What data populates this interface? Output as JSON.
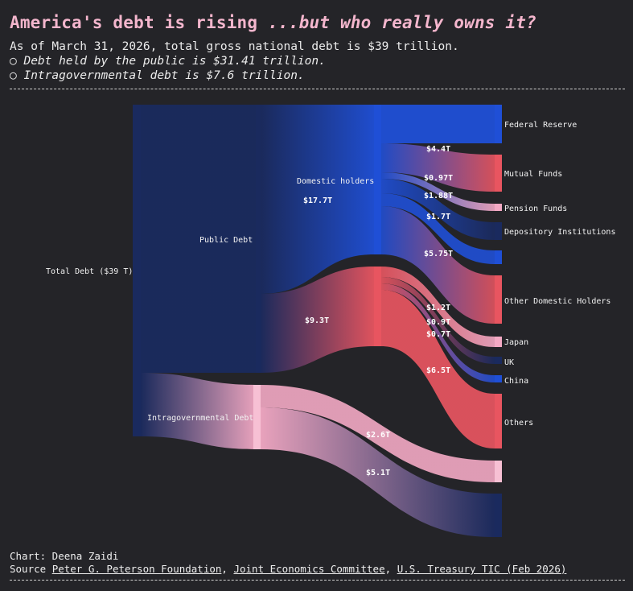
{
  "header": {
    "title_main": "America's debt is rising ",
    "title_italic": "...but who really owns it?",
    "subtitle": "As of March 31, 2026, total gross national debt is $39 trillion.",
    "bullet_symbol": "○",
    "bullet1": "Debt held by the public is $31.41 trillion.",
    "bullet2": "Intragovernmental debt is $7.6 trillion."
  },
  "nodes": {
    "total": "Total Debt ($39 T)",
    "public": "Public Debt",
    "intragov": "Intragovernmental Debt",
    "domestic": "Domestic holders",
    "fed": "Federal Reserve",
    "mutual": "Mutual Funds",
    "pension": "Pension Funds",
    "depository": "Depository Institutions",
    "otherdom": "Other Domestic Holders",
    "japan": "Japan",
    "uk": "UK",
    "china": "China",
    "others": "Others"
  },
  "values": {
    "domestic": "$17.7T",
    "foreign": "$9.3T",
    "mutual": "$4.4T",
    "pension": "$0.97T",
    "depository": "$1.88T",
    "otherdom_a": "$1.7T",
    "otherdom_b": "$5.75T",
    "japan": "$1.2T",
    "uk": "$0.9T",
    "china": "$0.7T",
    "others": "$6.5T",
    "intragov_a": "$2.6T",
    "intragov_b": "$5.1T"
  },
  "colors": {
    "navy": "#1a2a5e",
    "blue": "#1f4fd6",
    "red": "#e85560",
    "pink": "#f3a9c4",
    "background": "#242428"
  },
  "footer": {
    "chart_by": "Chart: Deena Zaidi",
    "source_label": "Source ",
    "link1": "Peter G. Peterson Foundation",
    "link2": "Joint Economics Committee",
    "link3": "U.S. Treasury TIC (Feb 2026)",
    "separator": ", "
  }
}
